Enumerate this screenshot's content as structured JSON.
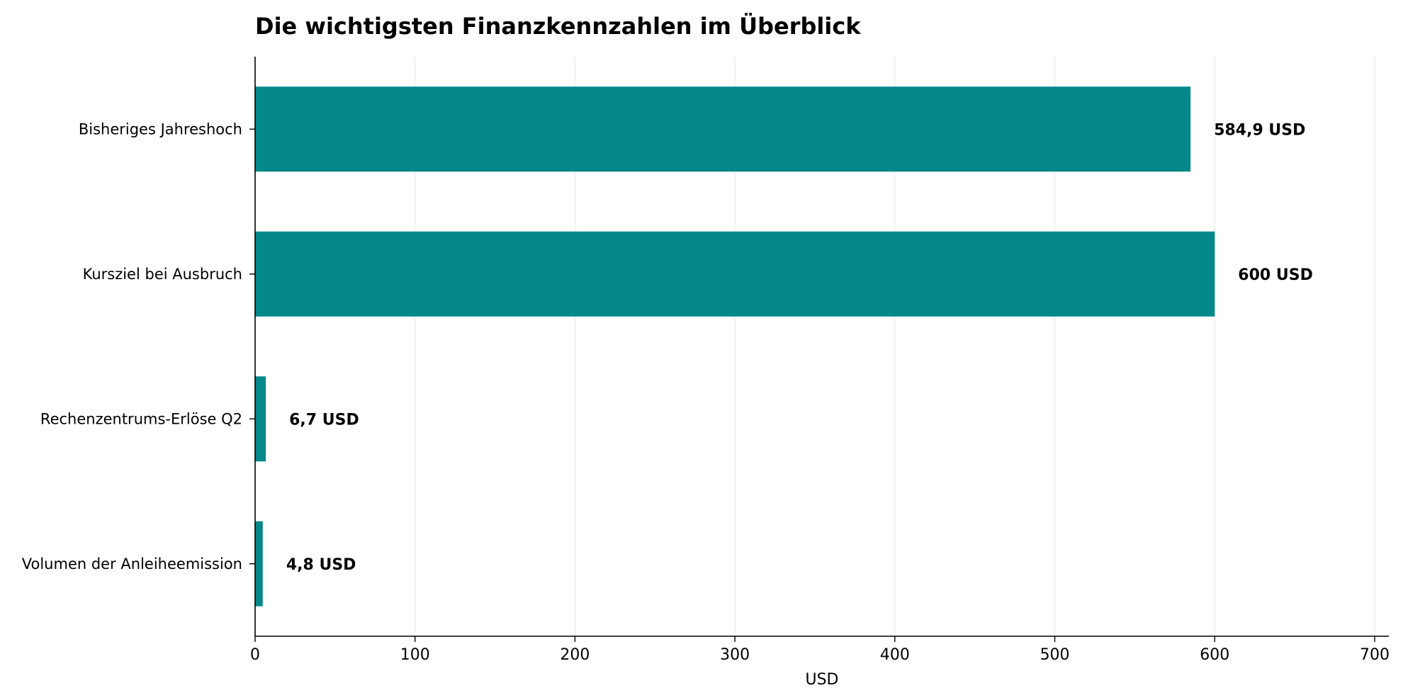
{
  "chart_data": {
    "type": "bar",
    "orientation": "horizontal",
    "title": "Die wichtigsten Finanzkennzahlen im Überblick",
    "xlabel": "USD",
    "ylabel": "",
    "xlim": [
      0,
      700
    ],
    "xticks": [
      0,
      100,
      200,
      300,
      400,
      500,
      600,
      700
    ],
    "grid": "vertical",
    "bar_color": "#05888a",
    "categories": [
      "Bisheriges Jahreshoch",
      "Kursziel bei Ausbruch",
      "Rechenzentrums-Erlöse Q2",
      "Volumen der Anleiheemission"
    ],
    "values": [
      584.9,
      600,
      6.7,
      4.8
    ],
    "value_labels": [
      "584,9 USD",
      "600 USD",
      "6,7 USD",
      "4,8 USD"
    ]
  }
}
